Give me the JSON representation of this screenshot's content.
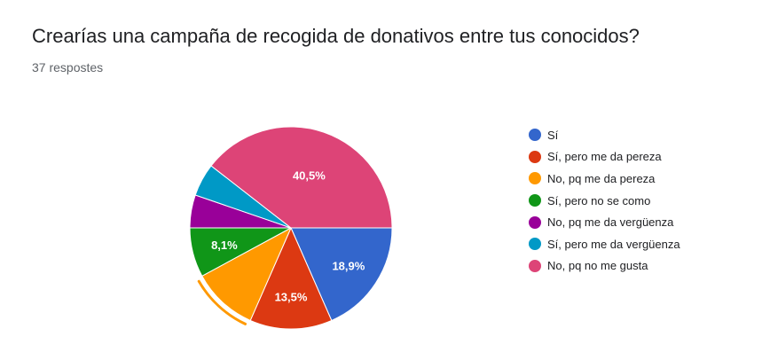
{
  "title": "Crearías una campaña de recogida de donativos entre tus conocidos?",
  "subtitle": "37 respostes",
  "chart_data": {
    "type": "pie",
    "title": "Crearías una campaña de recogida de donativos entre tus conocidos?",
    "legend_position": "right",
    "start": "3 o'clock, clockwise",
    "slices": [
      {
        "label": "Sí",
        "value": 7,
        "percent": 18.9,
        "percent_label": "18,9%",
        "color": "#3366cc"
      },
      {
        "label": "Sí, pero me da pereza",
        "value": 5,
        "percent": 13.5,
        "percent_label": "13,5%",
        "color": "#dc3912"
      },
      {
        "label": "No, pq me da pereza",
        "value": 4,
        "percent": 10.8,
        "percent_label": "",
        "color": "#ff9900",
        "highlighted": true
      },
      {
        "label": "Sí, pero no se como",
        "value": 3,
        "percent": 8.1,
        "percent_label": "8,1%",
        "color": "#109618"
      },
      {
        "label": "No, pq me da vergüenza",
        "value": 2,
        "percent": 5.4,
        "percent_label": "",
        "color": "#990099"
      },
      {
        "label": "Sí, pero me da vergüenza",
        "value": 2,
        "percent": 5.4,
        "percent_label": "",
        "color": "#0099c6"
      },
      {
        "label": "No, pq no me gusta",
        "value": 15,
        "percent": 40.5,
        "percent_label": "40,5%",
        "color": "#dd4477"
      }
    ]
  }
}
